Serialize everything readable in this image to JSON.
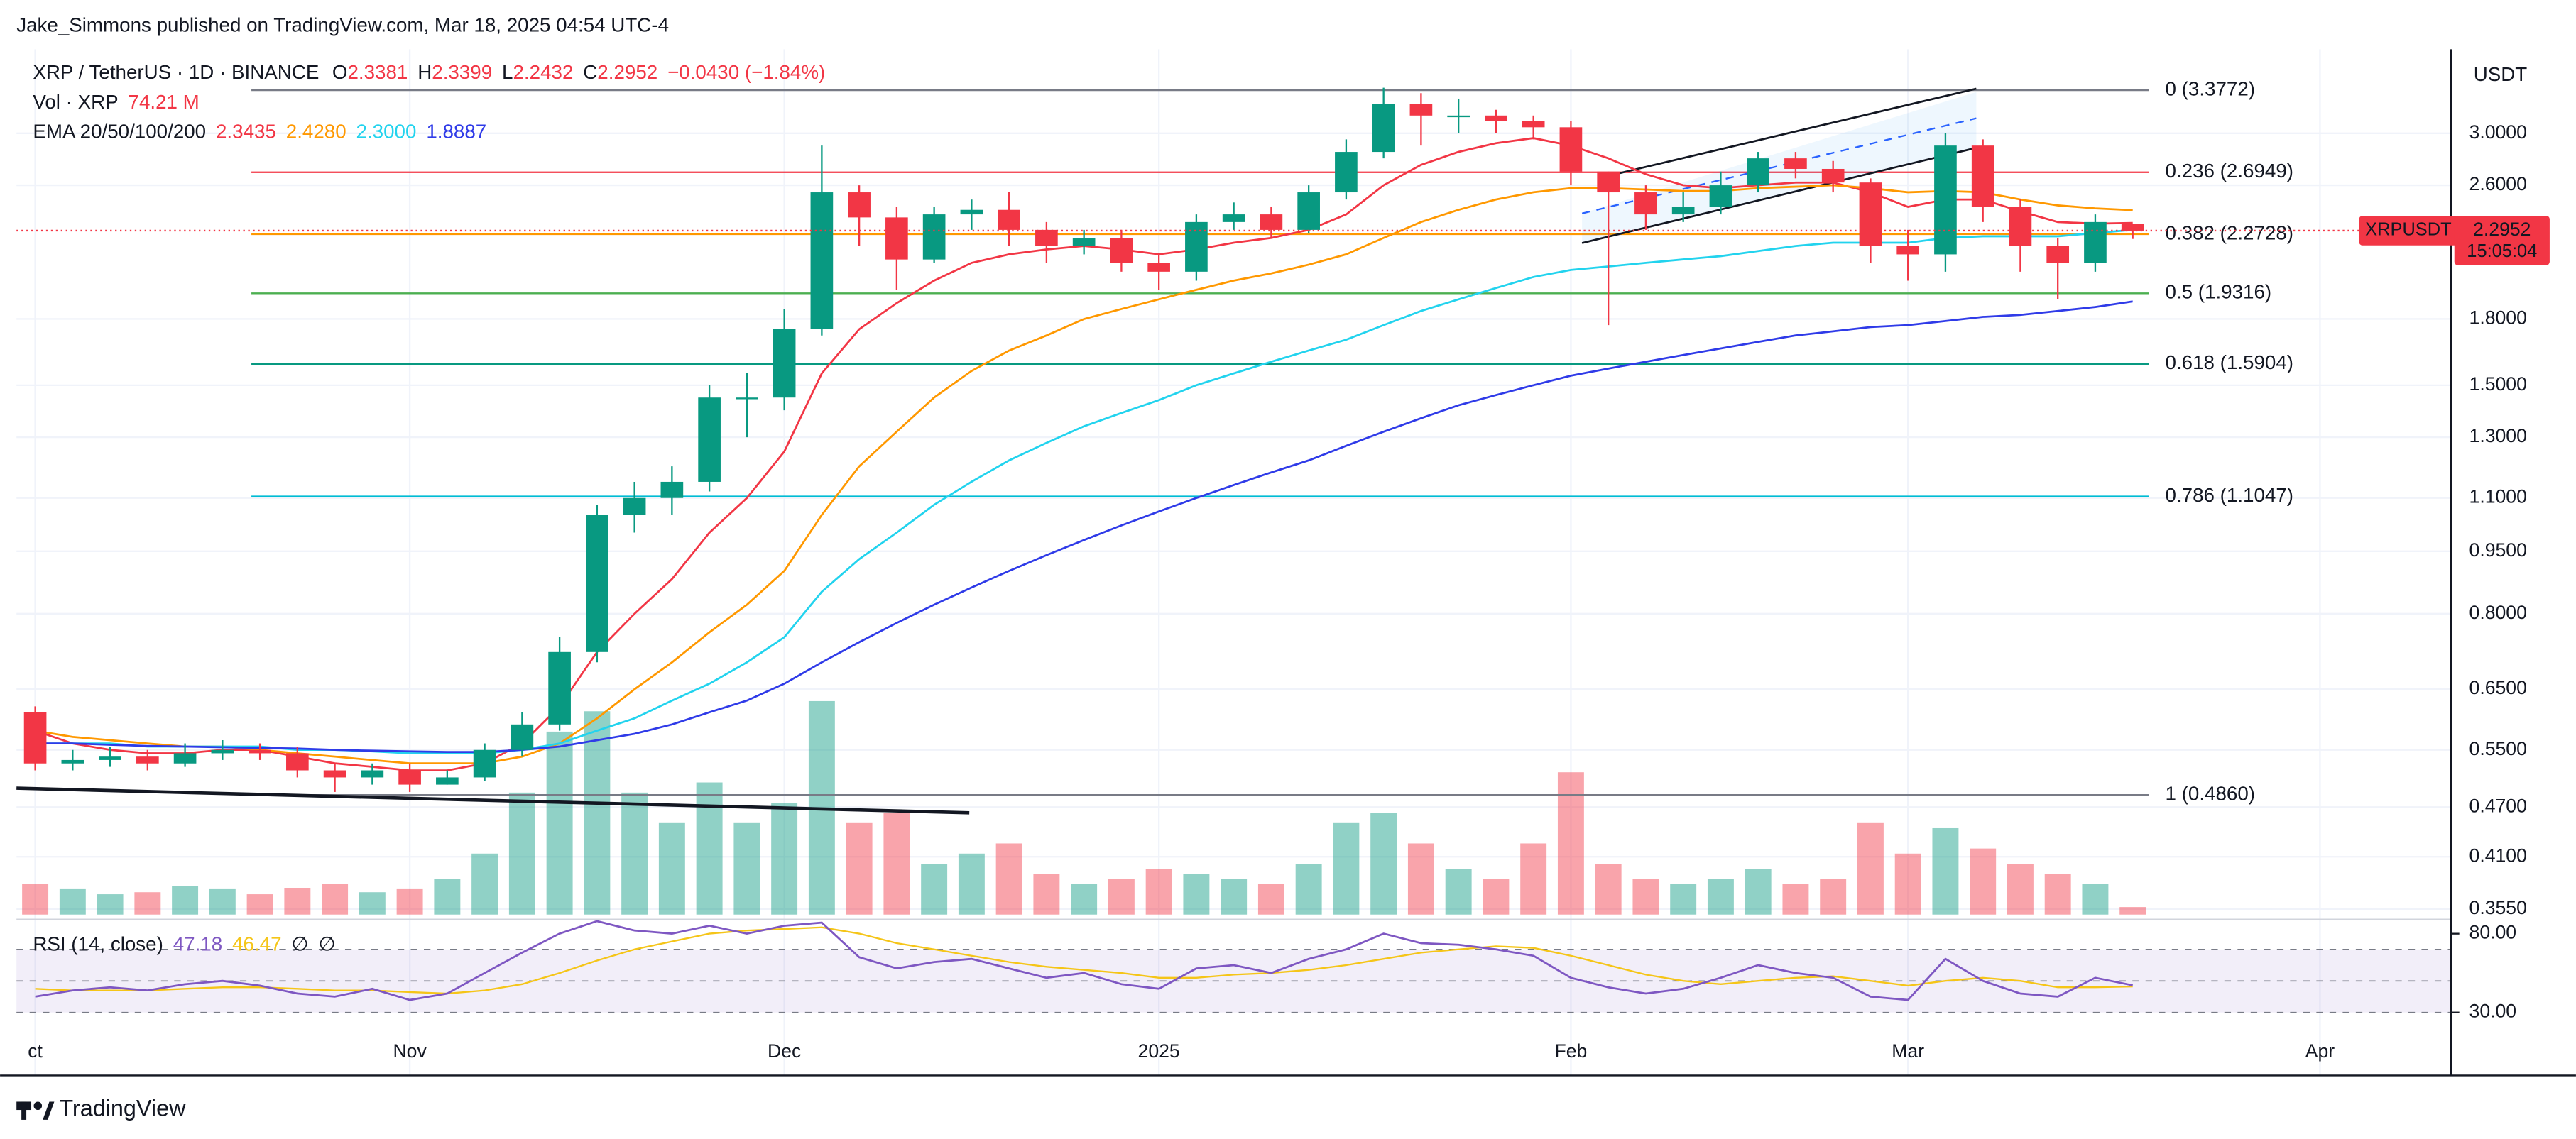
{
  "chart_data": {
    "type": "candlestick",
    "header": "Jake_Simmons published on TradingView.com, Mar 18, 2025 04:54 UTC-4",
    "title": "XRP / TetherUS · 1D · BINANCE",
    "ohlc_labels": [
      "O",
      "H",
      "L",
      "C"
    ],
    "change_label": "−0.0430 (−1.84%)",
    "currency": "USDT",
    "footer": "TradingView",
    "log_scale": true,
    "grid": true,
    "up_color": "#089981",
    "down_color": "#f23645",
    "categories": [
      "ct",
      null,
      null,
      null,
      null,
      null,
      null,
      null,
      null,
      null,
      "Nov",
      null,
      null,
      null,
      null,
      null,
      null,
      null,
      null,
      null,
      "Dec",
      null,
      null,
      null,
      null,
      null,
      null,
      null,
      null,
      null,
      "2025",
      null,
      null,
      null,
      null,
      null,
      null,
      null,
      null,
      null,
      null,
      "Feb",
      null,
      null,
      null,
      null,
      null,
      null,
      null,
      null,
      "Mar",
      null,
      null,
      null,
      null,
      null,
      null,
      null,
      null,
      null,
      null,
      "Apr",
      null,
      null,
      null
    ],
    "open": [
      0.61,
      0.53,
      0.535,
      0.54,
      0.53,
      0.545,
      0.55,
      0.545,
      0.52,
      0.51,
      0.52,
      0.5,
      0.51,
      0.55,
      0.59,
      0.72,
      1.05,
      1.1,
      1.15,
      1.45,
      1.45,
      1.75,
      2.55,
      2.38,
      2.12,
      2.4,
      2.43,
      2.3,
      2.2,
      2.25,
      2.1,
      2.05,
      2.35,
      2.4,
      2.3,
      2.55,
      2.85,
      3.25,
      3.15,
      3.15,
      3.1,
      3.05,
      2.7,
      2.55,
      2.4,
      2.45,
      2.6,
      2.8,
      2.72,
      2.62,
      2.2,
      2.15,
      2.9,
      2.45,
      2.2,
      2.1,
      2.3381,
      null,
      null,
      null,
      null,
      null,
      null,
      null,
      null
    ],
    "high": [
      0.62,
      0.55,
      0.555,
      0.55,
      0.56,
      0.565,
      0.56,
      0.555,
      0.53,
      0.53,
      0.53,
      0.52,
      0.56,
      0.61,
      0.75,
      1.08,
      1.15,
      1.2,
      1.5,
      1.55,
      1.85,
      2.9,
      2.6,
      2.45,
      2.45,
      2.5,
      2.55,
      2.35,
      2.3,
      2.3,
      2.15,
      2.4,
      2.48,
      2.45,
      2.6,
      2.95,
      3.4,
      3.35,
      3.3,
      3.2,
      3.15,
      3.1,
      2.7,
      2.6,
      2.55,
      2.7,
      2.85,
      2.85,
      2.78,
      2.65,
      2.3,
      3.0,
      2.95,
      2.5,
      2.25,
      2.4,
      2.3399,
      null,
      null,
      null,
      null,
      null,
      null,
      null,
      null
    ],
    "low": [
      0.52,
      0.52,
      0.525,
      0.52,
      0.525,
      0.535,
      0.535,
      0.51,
      0.49,
      0.5,
      0.49,
      0.5,
      0.505,
      0.54,
      0.58,
      0.7,
      1.0,
      1.05,
      1.12,
      1.3,
      1.4,
      1.72,
      2.2,
      1.95,
      2.1,
      2.3,
      2.2,
      2.1,
      2.15,
      2.05,
      1.95,
      2.0,
      2.3,
      2.25,
      2.28,
      2.5,
      2.8,
      2.9,
      3.0,
      3.0,
      2.95,
      2.6,
      1.77,
      2.3,
      2.35,
      2.4,
      2.55,
      2.65,
      2.55,
      2.1,
      2.0,
      2.05,
      2.35,
      2.05,
      1.9,
      2.05,
      2.2432,
      null,
      null,
      null,
      null,
      null,
      null,
      null,
      null
    ],
    "close": [
      0.53,
      0.535,
      0.54,
      0.53,
      0.545,
      0.55,
      0.545,
      0.52,
      0.51,
      0.52,
      0.5,
      0.51,
      0.55,
      0.59,
      0.72,
      1.05,
      1.1,
      1.15,
      1.45,
      1.45,
      1.75,
      2.55,
      2.38,
      2.12,
      2.4,
      2.43,
      2.3,
      2.2,
      2.25,
      2.1,
      2.05,
      2.35,
      2.4,
      2.3,
      2.55,
      2.85,
      3.25,
      3.15,
      3.15,
      3.1,
      3.05,
      2.7,
      2.55,
      2.4,
      2.45,
      2.6,
      2.8,
      2.72,
      2.62,
      2.2,
      2.15,
      2.9,
      2.45,
      2.2,
      2.1,
      2.35,
      2.2952,
      null,
      null,
      null,
      null,
      null,
      null,
      null,
      null
    ],
    "ylim": [
      0.345,
      3.78
    ],
    "yticks": [
      {
        "value": 3.0,
        "label": "3.0000"
      },
      {
        "value": 2.6,
        "label": "2.6000"
      },
      {
        "value": 1.8,
        "label": "1.8000"
      },
      {
        "value": 1.5,
        "label": "1.5000"
      },
      {
        "value": 1.3,
        "label": "1.3000"
      },
      {
        "value": 1.1,
        "label": "1.1000"
      },
      {
        "value": 0.95,
        "label": "0.9500"
      },
      {
        "value": 0.8,
        "label": "0.8000"
      },
      {
        "value": 0.65,
        "label": "0.6500"
      },
      {
        "value": 0.55,
        "label": "0.5500"
      },
      {
        "value": 0.47,
        "label": "0.4700"
      },
      {
        "value": 0.41,
        "label": "0.4100"
      },
      {
        "value": 0.355,
        "label": "0.3550"
      }
    ],
    "price_tag": {
      "symbol": "XRPUSDT",
      "countdown": "15:05:04",
      "color": "#f23645"
    },
    "volume": {
      "name": "Vol · XRP",
      "legend_value": "74.21 M",
      "values": [
        300,
        250,
        200,
        220,
        280,
        250,
        200,
        260,
        300,
        220,
        250,
        350,
        600,
        1200,
        1800,
        2000,
        1200,
        900,
        1300,
        900,
        1100,
        2100,
        900,
        1000,
        500,
        600,
        700,
        400,
        300,
        350,
        450,
        400,
        350,
        300,
        500,
        900,
        1000,
        700,
        450,
        350,
        700,
        1400,
        500,
        350,
        300,
        350,
        450,
        300,
        350,
        900,
        600,
        850,
        650,
        500,
        400,
        300,
        74.21,
        null,
        null,
        null,
        null,
        null,
        null,
        null,
        null
      ]
    },
    "ema": {
      "label": "EMA 20/50/100/200",
      "series": [
        {
          "color": "#f23645",
          "legend_value": "2.3435",
          "values": [
            0.58,
            0.56,
            0.55,
            0.545,
            0.545,
            0.55,
            0.55,
            0.54,
            0.53,
            0.525,
            0.52,
            0.52,
            0.53,
            0.56,
            0.62,
            0.72,
            0.8,
            0.88,
            1.0,
            1.1,
            1.25,
            1.55,
            1.75,
            1.88,
            2.0,
            2.1,
            2.15,
            2.18,
            2.2,
            2.18,
            2.15,
            2.18,
            2.22,
            2.25,
            2.3,
            2.4,
            2.6,
            2.75,
            2.85,
            2.92,
            2.96,
            2.9,
            2.8,
            2.68,
            2.6,
            2.58,
            2.6,
            2.62,
            2.62,
            2.55,
            2.45,
            2.5,
            2.5,
            2.42,
            2.35,
            2.34,
            2.3435,
            null,
            null,
            null,
            null,
            null,
            null,
            null,
            null
          ]
        },
        {
          "color": "#ff9800",
          "legend_value": "2.4280",
          "values": [
            0.58,
            0.57,
            0.565,
            0.56,
            0.555,
            0.555,
            0.55,
            0.545,
            0.54,
            0.535,
            0.53,
            0.53,
            0.53,
            0.54,
            0.56,
            0.6,
            0.65,
            0.7,
            0.76,
            0.82,
            0.9,
            1.05,
            1.2,
            1.32,
            1.45,
            1.56,
            1.65,
            1.72,
            1.8,
            1.85,
            1.9,
            1.95,
            2.0,
            2.04,
            2.09,
            2.15,
            2.25,
            2.35,
            2.43,
            2.5,
            2.55,
            2.58,
            2.58,
            2.57,
            2.56,
            2.56,
            2.58,
            2.59,
            2.6,
            2.58,
            2.55,
            2.56,
            2.55,
            2.5,
            2.46,
            2.44,
            2.428,
            null,
            null,
            null,
            null,
            null,
            null,
            null,
            null
          ]
        },
        {
          "color": "#22d3ee",
          "legend_value": "2.3000",
          "values": [
            0.56,
            0.56,
            0.56,
            0.555,
            0.555,
            0.555,
            0.555,
            0.55,
            0.55,
            0.548,
            0.545,
            0.545,
            0.545,
            0.55,
            0.56,
            0.58,
            0.6,
            0.63,
            0.66,
            0.7,
            0.75,
            0.85,
            0.93,
            1.0,
            1.08,
            1.15,
            1.22,
            1.28,
            1.34,
            1.39,
            1.44,
            1.5,
            1.55,
            1.6,
            1.65,
            1.7,
            1.77,
            1.84,
            1.9,
            1.96,
            2.02,
            2.06,
            2.08,
            2.1,
            2.12,
            2.14,
            2.17,
            2.2,
            2.22,
            2.22,
            2.22,
            2.25,
            2.26,
            2.26,
            2.26,
            2.28,
            2.3,
            null,
            null,
            null,
            null,
            null,
            null,
            null,
            null
          ]
        },
        {
          "color": "#2f3be8",
          "legend_value": "1.8887",
          "values": [
            0.56,
            0.56,
            0.558,
            0.556,
            0.555,
            0.554,
            0.553,
            0.552,
            0.55,
            0.549,
            0.548,
            0.547,
            0.547,
            0.55,
            0.555,
            0.565,
            0.575,
            0.59,
            0.61,
            0.63,
            0.66,
            0.7,
            0.74,
            0.78,
            0.82,
            0.86,
            0.9,
            0.94,
            0.98,
            1.02,
            1.06,
            1.1,
            1.14,
            1.18,
            1.22,
            1.27,
            1.32,
            1.37,
            1.42,
            1.46,
            1.5,
            1.54,
            1.57,
            1.6,
            1.63,
            1.66,
            1.69,
            1.72,
            1.74,
            1.76,
            1.77,
            1.79,
            1.81,
            1.82,
            1.84,
            1.86,
            1.8887,
            null,
            null,
            null,
            null,
            null,
            null,
            null,
            null
          ]
        }
      ]
    },
    "fib_levels": [
      {
        "label": "0 (3.3772)",
        "value": 3.3772,
        "color": "#787b86"
      },
      {
        "label": "0.236 (2.6949)",
        "value": 2.6949,
        "color": "#f23645"
      },
      {
        "label": "0.382 (2.2728)",
        "value": 2.2728,
        "color": "#ff9800"
      },
      {
        "label": "0.5 (1.9316)",
        "value": 1.9316,
        "color": "#4caf50"
      },
      {
        "label": "0.618 (1.5904)",
        "value": 1.5904,
        "color": "#089981"
      },
      {
        "label": "0.786 (1.1047)",
        "value": 1.1047,
        "color": "#00bcd4"
      },
      {
        "label": "1 (0.4860)",
        "value": 0.486,
        "color": "#787b86"
      }
    ],
    "rsi": {
      "label": "RSI (14, close)",
      "color": "#7e57c2",
      "ylim": [
        14,
        89
      ],
      "yticks": [
        {
          "value": 80,
          "label": "80.00"
        },
        {
          "value": 30,
          "label": "30.00"
        }
      ],
      "bands": [
        70,
        50,
        30
      ],
      "extra": [
        "∅",
        "∅"
      ],
      "values": [
        40,
        44,
        46,
        44,
        48,
        50,
        47,
        42,
        40,
        45,
        38,
        42,
        55,
        68,
        80,
        88,
        82,
        80,
        85,
        80,
        85,
        87,
        65,
        58,
        62,
        64,
        58,
        52,
        55,
        48,
        45,
        58,
        60,
        55,
        64,
        70,
        80,
        74,
        73,
        70,
        66,
        52,
        46,
        42,
        45,
        52,
        60,
        55,
        52,
        40,
        38,
        64,
        50,
        42,
        40,
        52,
        47.18,
        null,
        null,
        null,
        null,
        null,
        null,
        null,
        null
      ],
      "ma": {
        "color": "#f5c518",
        "values": [
          45,
          44,
          44,
          44,
          45,
          46,
          46,
          45,
          44,
          44,
          43,
          42,
          44,
          48,
          55,
          63,
          70,
          75,
          80,
          82,
          83,
          84,
          80,
          74,
          70,
          66,
          62,
          59,
          57,
          55,
          52,
          52,
          54,
          55,
          57,
          60,
          64,
          68,
          70,
          72,
          71,
          66,
          60,
          54,
          50,
          48,
          50,
          52,
          53,
          50,
          47,
          50,
          52,
          50,
          46,
          46,
          46.47,
          null,
          null,
          null,
          null,
          null,
          null,
          null,
          null
        ]
      }
    }
  }
}
